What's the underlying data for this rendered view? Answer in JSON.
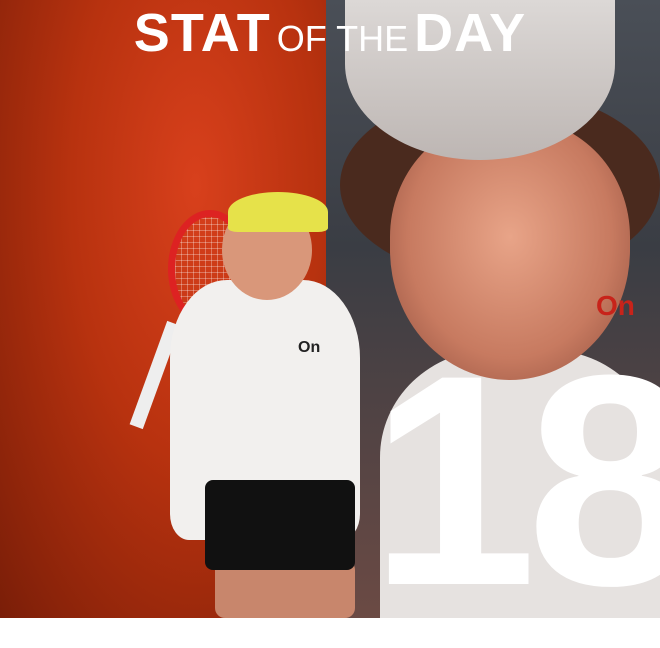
{
  "title": {
    "part1": "STAT",
    "part2": "OF THE",
    "part3": "DAY"
  },
  "stat_value": "18",
  "logos": {
    "shirt_brand": "On"
  },
  "colors": {
    "left_bg": "#b8320f",
    "right_bg": "#3a3d44",
    "text": "#ffffff"
  }
}
